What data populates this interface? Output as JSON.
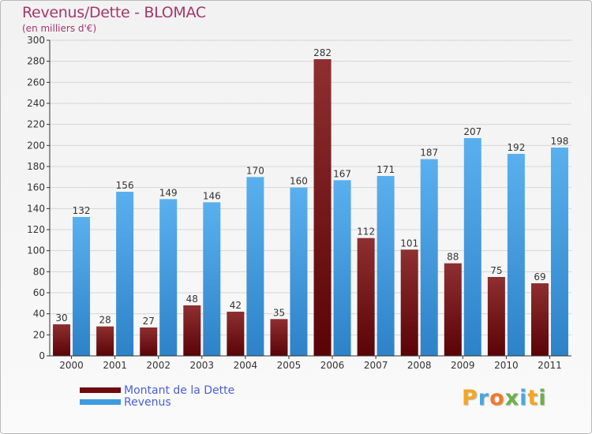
{
  "header": {
    "title": "Revenus/Dette - BLOMAC",
    "subtitle": "(en milliers d'€)"
  },
  "legend": [
    {
      "label": "Montant de la Dette",
      "color": "#6e0b0e"
    },
    {
      "label": "Revenus",
      "color": "#3f9be0"
    }
  ],
  "logo": {
    "letters": [
      "P",
      "r",
      "o",
      "x",
      "i",
      "t",
      "i"
    ],
    "colors": [
      "#f5a623",
      "#4aa8e0",
      "#f07a2a",
      "#6ab04c",
      "#4aa8e0",
      "#f5a623",
      "#6ab04c"
    ]
  },
  "chart_data": {
    "type": "bar",
    "title": "Revenus/Dette - BLOMAC",
    "ylabel": "(en milliers d'€)",
    "xlabel": "",
    "categories": [
      "2000",
      "2001",
      "2002",
      "2003",
      "2004",
      "2005",
      "2006",
      "2007",
      "2008",
      "2009",
      "2010",
      "2011"
    ],
    "series": [
      {
        "name": "Montant de la Dette",
        "values": [
          30,
          28,
          27,
          48,
          42,
          35,
          282,
          112,
          101,
          88,
          75,
          69
        ]
      },
      {
        "name": "Revenus",
        "values": [
          132,
          156,
          149,
          146,
          170,
          160,
          167,
          171,
          187,
          207,
          192,
          198
        ]
      }
    ],
    "ylim": [
      0,
      300
    ],
    "yticks": [
      0,
      20,
      40,
      60,
      80,
      100,
      120,
      140,
      160,
      180,
      200,
      220,
      240,
      260,
      280,
      300
    ],
    "grid": true,
    "legend_position": "bottom-left"
  }
}
